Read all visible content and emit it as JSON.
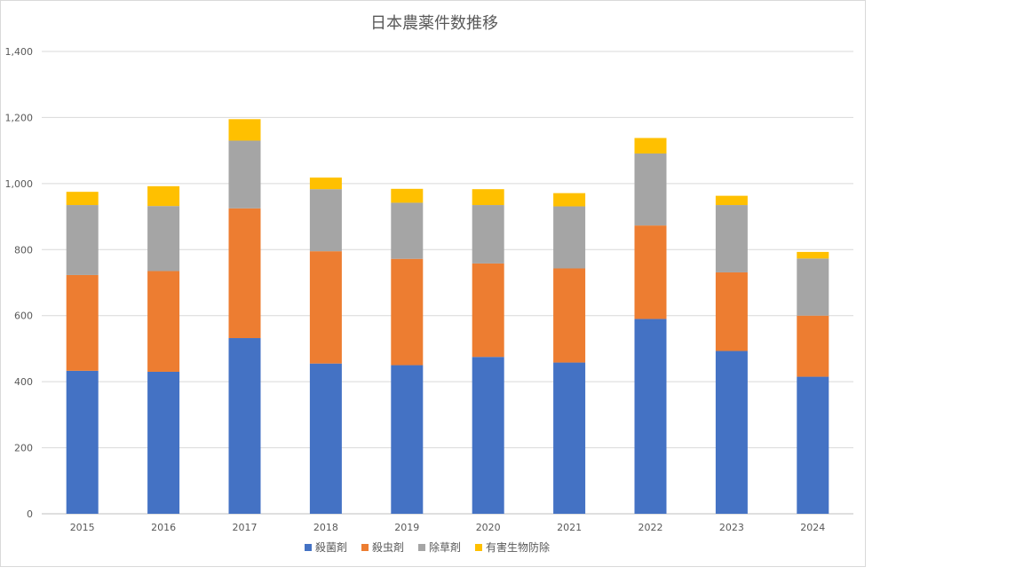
{
  "chart_data": {
    "type": "bar",
    "stacked": true,
    "title": "日本農薬件数推移",
    "categories": [
      "2015",
      "2016",
      "2017",
      "2018",
      "2019",
      "2020",
      "2021",
      "2022",
      "2023",
      "2024"
    ],
    "series": [
      {
        "name": "殺菌剤",
        "color": "#4472C4",
        "values": [
          433,
          430,
          532,
          455,
          450,
          475,
          458,
          590,
          493,
          415
        ]
      },
      {
        "name": "殺虫剤",
        "color": "#ED7D31",
        "values": [
          290,
          305,
          393,
          340,
          322,
          283,
          285,
          283,
          238,
          185
        ]
      },
      {
        "name": "除草剤",
        "color": "#A5A5A5",
        "values": [
          212,
          197,
          205,
          188,
          170,
          177,
          188,
          218,
          204,
          173
        ]
      },
      {
        "name": "有害生物防除",
        "color": "#FFC000",
        "values": [
          40,
          60,
          65,
          35,
          42,
          48,
          40,
          47,
          28,
          20
        ]
      }
    ],
    "ylim": [
      0,
      1400
    ],
    "yticks": [
      "0",
      "200",
      "400",
      "600",
      "800",
      "1,000",
      "1,200",
      "1,400"
    ],
    "grid": true,
    "legend": "bottom"
  }
}
